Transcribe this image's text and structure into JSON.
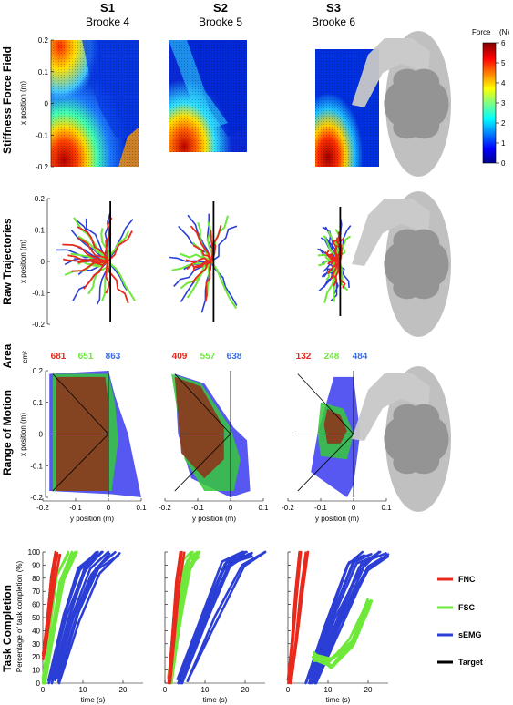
{
  "subjects": [
    {
      "id": "S1",
      "name": "Brooke 4"
    },
    {
      "id": "S2",
      "name": "Brooke 5"
    },
    {
      "id": "S3",
      "name": "Brooke 6"
    }
  ],
  "rows": [
    "Stiffness Force Field",
    "Raw Trajectories",
    "Area",
    "Range of Motion",
    "Task Completion"
  ],
  "colors": {
    "FNC": "#e8291c",
    "FSC": "#6ee83a",
    "sEMG": "#2b3fd6",
    "Target": "#000000",
    "body": "#a9a9a9"
  },
  "colorbar": {
    "title": "Force",
    "unit": "(N)",
    "ticks": [
      "0",
      "1",
      "2",
      "3",
      "4",
      "5",
      "6"
    ]
  },
  "legend": [
    {
      "key": "FNC",
      "label": "FNC"
    },
    {
      "key": "FSC",
      "label": "FSC"
    },
    {
      "key": "sEMG",
      "label": "sEMG"
    },
    {
      "key": "Target",
      "label": "Target"
    }
  ],
  "area_unit": "cm²",
  "labels": {
    "x_position": "x position (m)",
    "y_position": "y position (m)",
    "time": "time (s)",
    "task_ylabel": "Percentage of task completion (%)"
  },
  "chart_data": [
    {
      "type": "heatmap",
      "row": "Stiffness Force Field",
      "ylabel": "x position (m)",
      "ylim": [
        -0.2,
        0.2
      ],
      "yticks": [
        "0.2",
        "0.1",
        "0",
        "-0.1",
        "-0.2"
      ],
      "colorbar_range_N": [
        0,
        6
      ],
      "max_force_N": [
        6,
        6,
        6
      ]
    },
    {
      "type": "line",
      "row": "Raw Trajectories",
      "ylabel": "x position (m)",
      "ylim": [
        -0.2,
        0.2
      ],
      "yticks": [
        "0.2",
        "0.1",
        "0",
        "-0.1",
        "-0.2"
      ],
      "series": [
        {
          "name": "FNC"
        },
        {
          "name": "FSC"
        },
        {
          "name": "sEMG"
        },
        {
          "name": "Target"
        }
      ]
    },
    {
      "type": "table",
      "row": "Area",
      "unit": "cm²",
      "values": {
        "S1": {
          "FNC": 681,
          "FSC": 651,
          "sEMG": 863
        },
        "S2": {
          "FNC": 409,
          "FSC": 557,
          "sEMG": 638
        },
        "S3": {
          "FNC": 132,
          "FSC": 248,
          "sEMG": 484
        }
      }
    },
    {
      "type": "area",
      "row": "Range of Motion",
      "xlabel": "y position (m)",
      "ylabel": "x position (m)",
      "xlim": [
        -0.2,
        0.1
      ],
      "ylim": [
        -0.2,
        0.2
      ],
      "xticks": [
        "-0.2",
        "-0.1",
        "0",
        "0.1"
      ],
      "yticks": [
        "0.2",
        "0.1",
        "0",
        "-0.1",
        "-0.2"
      ],
      "hulls": {
        "S1": {
          "sEMG": [
            [
              -0.18,
              0.19
            ],
            [
              0.0,
              0.2
            ],
            [
              0.02,
              0.12
            ],
            [
              0.06,
              0.0
            ],
            [
              0.09,
              -0.15
            ],
            [
              0.1,
              -0.2
            ],
            [
              0.01,
              -0.19
            ],
            [
              -0.18,
              -0.18
            ]
          ],
          "FSC": [
            [
              -0.17,
              0.19
            ],
            [
              0.0,
              0.19
            ],
            [
              0.02,
              0.1
            ],
            [
              0.03,
              -0.02
            ],
            [
              0.01,
              -0.18
            ],
            [
              -0.17,
              -0.18
            ]
          ],
          "FNC": [
            [
              -0.16,
              0.18
            ],
            [
              -0.01,
              0.18
            ],
            [
              0.0,
              0.1
            ],
            [
              0.0,
              -0.18
            ],
            [
              -0.16,
              -0.18
            ]
          ]
        },
        "S2": {
          "sEMG": [
            [
              -0.17,
              0.19
            ],
            [
              -0.08,
              0.16
            ],
            [
              0.01,
              0.02
            ],
            [
              0.05,
              -0.02
            ],
            [
              0.06,
              -0.18
            ],
            [
              0.0,
              -0.2
            ],
            [
              -0.12,
              -0.14
            ],
            [
              -0.16,
              0.0
            ]
          ],
          "FSC": [
            [
              -0.18,
              0.19
            ],
            [
              -0.09,
              0.16
            ],
            [
              0.0,
              0.02
            ],
            [
              0.03,
              -0.08
            ],
            [
              0.01,
              -0.18
            ],
            [
              -0.08,
              -0.18
            ],
            [
              -0.14,
              -0.08
            ]
          ],
          "FNC": [
            [
              -0.17,
              0.18
            ],
            [
              -0.09,
              0.15
            ],
            [
              -0.02,
              0.02
            ],
            [
              -0.02,
              -0.08
            ],
            [
              -0.08,
              -0.14
            ],
            [
              -0.15,
              -0.06
            ]
          ]
        },
        "S3": {
          "sEMG": [
            [
              -0.06,
              0.18
            ],
            [
              0.0,
              0.18
            ],
            [
              0.02,
              0.0
            ],
            [
              0.0,
              -0.16
            ],
            [
              -0.02,
              -0.2
            ],
            [
              -0.13,
              -0.12
            ],
            [
              -0.11,
              0.0
            ]
          ],
          "FSC": [
            [
              -0.1,
              0.1
            ],
            [
              -0.03,
              0.08
            ],
            [
              0.0,
              0.0
            ],
            [
              -0.02,
              -0.08
            ],
            [
              -0.1,
              -0.07
            ],
            [
              -0.11,
              0.0
            ]
          ],
          "FNC": [
            [
              -0.08,
              0.08
            ],
            [
              -0.04,
              0.06
            ],
            [
              -0.02,
              0.01
            ],
            [
              -0.04,
              -0.03
            ],
            [
              -0.08,
              -0.03
            ],
            [
              -0.09,
              0.03
            ]
          ]
        }
      }
    },
    {
      "type": "line",
      "row": "Task Completion",
      "xlabel": "time (s)",
      "ylabel": "Percentage of task completion (%)",
      "xlim": [
        0,
        25
      ],
      "ylim": [
        0,
        100
      ],
      "xticks": [
        "0",
        "10",
        "20"
      ],
      "yticks": [
        "0",
        "10",
        "20",
        "30",
        "40",
        "50",
        "60",
        "70",
        "80",
        "90",
        "100"
      ],
      "series": [
        {
          "name": "FNC",
          "values": {
            "S1": [
              [
                0,
                20
              ],
              [
                1,
                50
              ],
              [
                2,
                80
              ],
              [
                3,
                100
              ]
            ],
            "S2": [
              [
                1,
                0
              ],
              [
                2,
                40
              ],
              [
                3,
                80
              ],
              [
                4,
                100
              ]
            ],
            "S3": [
              [
                0,
                0
              ],
              [
                1,
                30
              ],
              [
                2,
                70
              ],
              [
                3,
                100
              ]
            ]
          }
        },
        {
          "name": "FSC",
          "values": {
            "S1": [
              [
                0,
                0
              ],
              [
                2,
                40
              ],
              [
                4,
                80
              ],
              [
                7,
                100
              ]
            ],
            "S2": [
              [
                1,
                0
              ],
              [
                3,
                50
              ],
              [
                5,
                90
              ],
              [
                7,
                100
              ]
            ],
            "S3": [
              [
                6,
                20
              ],
              [
                10,
                15
              ],
              [
                15,
                30
              ],
              [
                19,
                60
              ]
            ]
          }
        },
        {
          "name": "sEMG",
          "values": {
            "S1": [
              [
                2,
                0
              ],
              [
                6,
                50
              ],
              [
                10,
                85
              ],
              [
                14,
                100
              ]
            ],
            "S2": [
              [
                4,
                0
              ],
              [
                10,
                50
              ],
              [
                16,
                90
              ],
              [
                21,
                100
              ]
            ],
            "S3": [
              [
                5,
                0
              ],
              [
                10,
                45
              ],
              [
                16,
                90
              ],
              [
                20,
                100
              ]
            ]
          }
        }
      ]
    }
  ]
}
